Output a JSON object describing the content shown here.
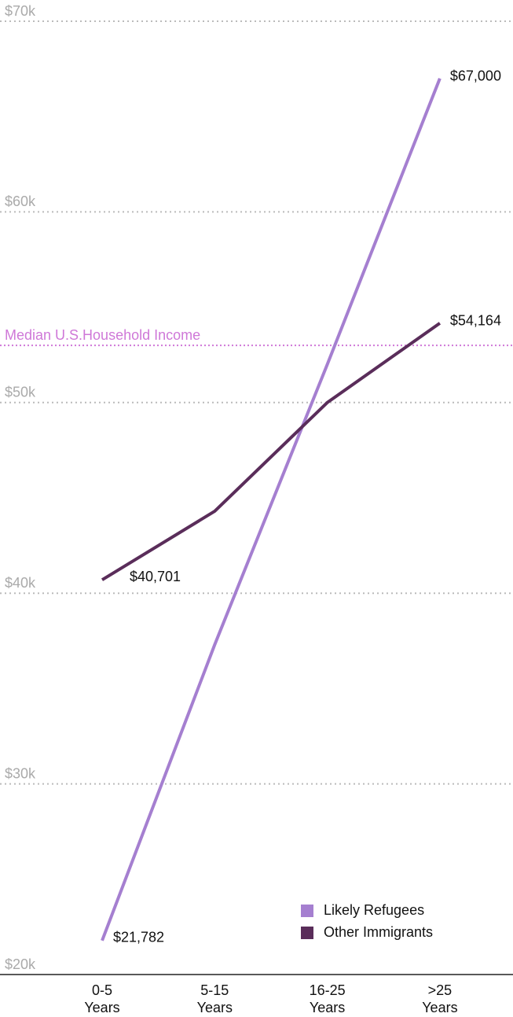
{
  "chart_data": {
    "type": "line",
    "categories": [
      "0-5 Years",
      "5-15 Years",
      "16-25 Years",
      ">25 Years"
    ],
    "series": [
      {
        "name": "Likely Refugees",
        "color": "#a57fd0",
        "values": [
          21782,
          37300,
          52000,
          67000
        ],
        "value_labels": [
          "$21,782",
          null,
          null,
          "$67,000"
        ]
      },
      {
        "name": "Other Immigrants",
        "color": "#5a2d5a",
        "values": [
          40701,
          44300,
          50000,
          54164
        ],
        "value_labels": [
          "$40,701",
          null,
          null,
          "$54,164"
        ]
      }
    ],
    "reference_line": {
      "label": "Median U.S.Household Income",
      "value": 53000,
      "color": "#cf78d8"
    },
    "ylim": [
      20000,
      70000
    ],
    "yticks": [
      {
        "value": 20000,
        "label": "$20k"
      },
      {
        "value": 30000,
        "label": "$30k"
      },
      {
        "value": 40000,
        "label": "$40k"
      },
      {
        "value": 50000,
        "label": "$50k"
      },
      {
        "value": 60000,
        "label": "$60k"
      },
      {
        "value": 70000,
        "label": "$70k"
      }
    ],
    "grid": true,
    "legend": "lower right"
  }
}
